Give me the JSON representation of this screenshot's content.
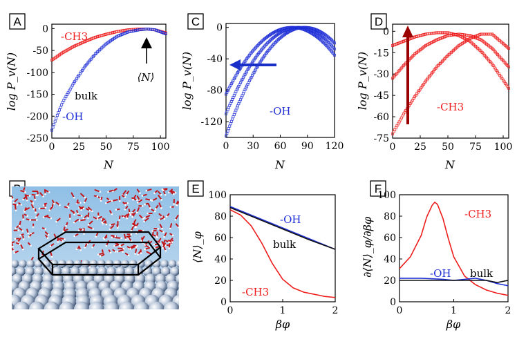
{
  "figure": {
    "panels": {
      "A": {
        "label": "A"
      },
      "B": {
        "label": "B"
      },
      "C": {
        "label": "C"
      },
      "D": {
        "label": "D"
      },
      "E": {
        "label": "E"
      },
      "F": {
        "label": "F"
      }
    }
  },
  "chart_data": [
    {
      "panel": "A",
      "type": "scatter",
      "xlabel": "N",
      "ylabel": "log P_v(N)",
      "xlim": [
        0,
        105
      ],
      "ylim": [
        -250,
        10
      ],
      "xticks": [
        "0",
        "25",
        "50",
        "75",
        "100"
      ],
      "yticks": [
        "0",
        "-50",
        "-100",
        "-150",
        "-200",
        "-250"
      ],
      "annotations": [
        "-CH3",
        "bulk",
        "-OH",
        "⟨N⟩"
      ],
      "series": [
        {
          "name": "-CH3",
          "color": "#ee1c1c",
          "x": [
            0,
            10,
            20,
            30,
            40,
            50,
            60,
            70,
            80,
            88,
            95,
            105
          ],
          "y": [
            -72,
            -55,
            -41,
            -30,
            -20,
            -13,
            -7,
            -3,
            -1,
            -1,
            -3,
            -10
          ]
        },
        {
          "name": "-OH",
          "color": "#1f2fd6",
          "x": [
            0,
            5,
            10,
            20,
            30,
            40,
            50,
            60,
            70,
            80,
            88,
            95,
            105
          ],
          "y": [
            -232,
            -198,
            -168,
            -125,
            -88,
            -58,
            -35,
            -18,
            -8,
            -3,
            -1,
            -3,
            -12
          ]
        }
      ]
    },
    {
      "panel": "C",
      "type": "scatter",
      "xlabel": "N",
      "ylabel": "log P_v(N)",
      "xlim": [
        0,
        120
      ],
      "ylim": [
        -140,
        5
      ],
      "xticks": [
        "0",
        "30",
        "60",
        "90",
        "120"
      ],
      "yticks": [
        "0",
        "-40",
        "-80",
        "-120"
      ],
      "annotations": [
        "-OH"
      ],
      "series": [
        {
          "name": "",
          "color": "#1f2fd6",
          "peak_x": 73,
          "samples_y_at_x0": -85
        },
        {
          "name": "",
          "color": "#1f2fd6",
          "peak_x": 80,
          "samples_y_at_x0": -110
        },
        {
          "name": "",
          "color": "#1f2fd6",
          "peak_x": 87,
          "samples_y_at_x0": -138
        }
      ]
    },
    {
      "panel": "D",
      "type": "scatter",
      "xlabel": "N",
      "ylabel": "log P_v(N)",
      "xlim": [
        0,
        105
      ],
      "ylim": [
        -75,
        5
      ],
      "xticks": [
        "0",
        "25",
        "50",
        "75",
        "100"
      ],
      "yticks": [
        "0",
        "-15",
        "-30",
        "-45",
        "-60",
        "-75"
      ],
      "annotations": [
        "-CH3"
      ],
      "series": [
        {
          "name": "",
          "color": "#ee1c1c",
          "x": [
            0,
            10,
            20,
            30,
            40,
            50,
            60,
            70,
            80,
            90,
            105
          ],
          "y": [
            -10,
            -7,
            -4,
            -2,
            -1,
            -1,
            -3,
            -7,
            -14,
            -23,
            -40
          ]
        },
        {
          "name": "",
          "color": "#ee1c1c",
          "x": [
            0,
            10,
            20,
            30,
            40,
            50,
            60,
            70,
            80,
            90,
            105
          ],
          "y": [
            -33,
            -24,
            -16,
            -10,
            -6,
            -3,
            -2,
            -3,
            -6,
            -12,
            -25
          ]
        },
        {
          "name": "",
          "color": "#ee1c1c",
          "x": [
            0,
            10,
            20,
            30,
            40,
            50,
            60,
            70,
            80,
            90,
            105
          ],
          "y": [
            -72,
            -58,
            -46,
            -35,
            -25,
            -17,
            -10,
            -5,
            -2,
            -2,
            -12
          ]
        }
      ]
    },
    {
      "panel": "E",
      "type": "line",
      "xlabel": "βφ",
      "ylabel": "⟨N⟩_φ",
      "xlim": [
        0,
        2
      ],
      "ylim": [
        0,
        100
      ],
      "xticks": [
        "0",
        "1",
        "2"
      ],
      "yticks": [
        "0",
        "20",
        "40",
        "60",
        "80",
        "100"
      ],
      "annotations": [
        "-OH",
        "bulk",
        "-CH3"
      ],
      "series": [
        {
          "name": "-OH",
          "color": "#1f2fd6",
          "x": [
            0,
            0.5,
            1,
            1.5,
            2
          ],
          "y": [
            89,
            79,
            69,
            59,
            49
          ]
        },
        {
          "name": "bulk",
          "color": "#111111",
          "x": [
            0,
            0.5,
            1,
            1.5,
            2
          ],
          "y": [
            88,
            78,
            68,
            58,
            49
          ]
        },
        {
          "name": "-CH3",
          "color": "#ee1c1c",
          "x": [
            0,
            0.2,
            0.4,
            0.6,
            0.8,
            1.0,
            1.2,
            1.4,
            1.6,
            1.8,
            2.0
          ],
          "y": [
            86,
            81,
            71,
            55,
            36,
            21,
            13,
            9,
            7,
            5,
            4
          ]
        }
      ]
    },
    {
      "panel": "F",
      "type": "line",
      "xlabel": "βφ",
      "ylabel": "∂⟨N⟩_φ/∂βφ",
      "xlim": [
        0,
        2
      ],
      "ylim": [
        0,
        100
      ],
      "xticks": [
        "0",
        "1",
        "2"
      ],
      "yticks": [
        "0",
        "20",
        "40",
        "60",
        "80",
        "100"
      ],
      "annotations": [
        "-CH3",
        "-OH",
        "bulk"
      ],
      "series": [
        {
          "name": "-CH3",
          "color": "#ee1c1c",
          "x": [
            0,
            0.2,
            0.4,
            0.5,
            0.6,
            0.65,
            0.7,
            0.8,
            0.9,
            1.0,
            1.2,
            1.4,
            1.6,
            1.8,
            2.0
          ],
          "y": [
            31,
            42,
            62,
            79,
            90,
            93,
            91,
            78,
            59,
            42,
            24,
            16,
            11,
            8,
            6
          ]
        },
        {
          "name": "-OH",
          "color": "#1f2fd6",
          "x": [
            0,
            0.4,
            0.8,
            1.0,
            1.2,
            1.4,
            1.6,
            1.8,
            2.0
          ],
          "y": [
            22,
            22,
            21,
            20,
            21,
            22,
            20,
            17,
            15
          ]
        },
        {
          "name": "bulk",
          "color": "#111111",
          "x": [
            0,
            0.4,
            0.8,
            1.2,
            1.6,
            1.8,
            2.0
          ],
          "y": [
            20,
            20,
            20,
            20,
            20,
            18,
            20
          ]
        }
      ]
    }
  ]
}
